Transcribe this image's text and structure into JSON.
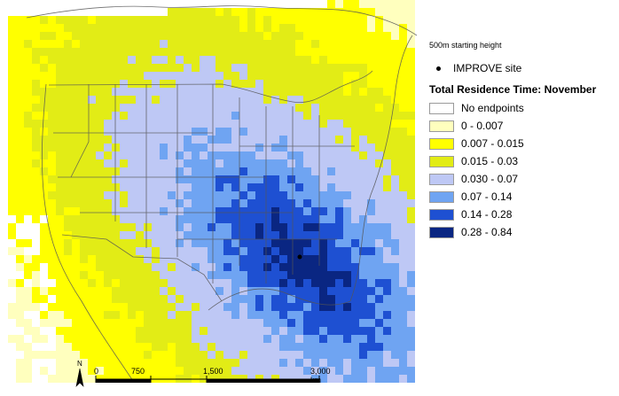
{
  "legend": {
    "subtitle": "500m starting height",
    "site_label": "IMPROVE site",
    "title": "Total Residence Time: November",
    "classes": [
      {
        "label": "No endpoints",
        "color": "#ffffff"
      },
      {
        "label": "0 - 0.007",
        "color": "#ffffbe"
      },
      {
        "label": "0.007 - 0.015",
        "color": "#ffff00"
      },
      {
        "label": "0.015 - 0.03",
        "color": "#e2ec16"
      },
      {
        "label": "0.030 - 0.07",
        "color": "#bec8f5"
      },
      {
        "label": "0.07 - 0.14",
        "color": "#6fa4f2"
      },
      {
        "label": "0.14 - 0.28",
        "color": "#1e50d2"
      },
      {
        "label": "0.28 - 0.84",
        "color": "#0a2682"
      }
    ]
  },
  "scalebar": {
    "ticks": [
      "0",
      "750",
      "1,500",
      "3,000 km"
    ]
  },
  "north": {
    "label": "N"
  },
  "map": {
    "colors": {
      "background": "#ffffff",
      "border_lines": "#555555",
      "site_marker": "#000000"
    }
  }
}
